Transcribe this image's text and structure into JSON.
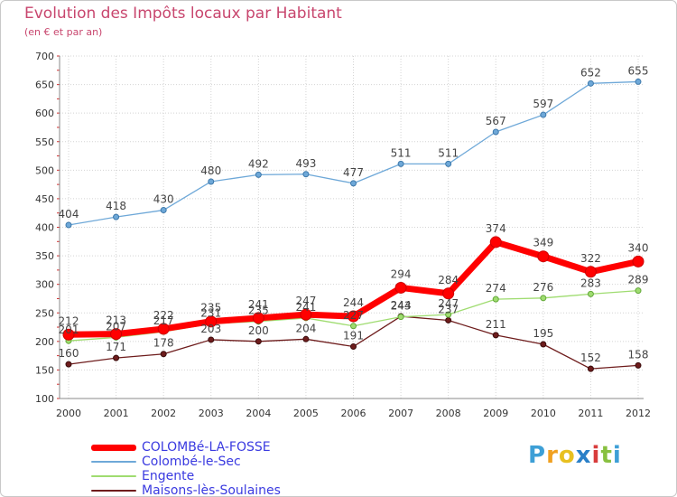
{
  "chart_data": {
    "type": "line",
    "title": "Evolution des Impôts locaux par Habitant",
    "subtitle": "(en € et par an)",
    "xlabel": "",
    "ylabel": "",
    "x": [
      "2000",
      "2001",
      "2002",
      "2003",
      "2004",
      "2005",
      "2006",
      "2007",
      "2008",
      "2009",
      "2010",
      "2011",
      "2012"
    ],
    "ylim": [
      100,
      700
    ],
    "yticks": [
      "100",
      "150",
      "200",
      "250",
      "300",
      "350",
      "400",
      "450",
      "500",
      "550",
      "600",
      "650",
      "700"
    ],
    "grid": true,
    "legend_position": "bottom-left",
    "series": [
      {
        "name": "COLOMBé-LA-FOSSE",
        "color": "#ff0000",
        "values": [
          212,
          213,
          222,
          235,
          241,
          247,
          244,
          294,
          284,
          374,
          349,
          322,
          340
        ],
        "labels": [
          "212",
          "213",
          "222",
          "235",
          "241",
          "247",
          "244",
          "294",
          "284",
          "374",
          "349",
          "322",
          "340"
        ]
      },
      {
        "name": "Colombé-le-Sec",
        "color": "#6ea8d8",
        "values": [
          404,
          418,
          430,
          480,
          492,
          493,
          477,
          511,
          511,
          567,
          597,
          652,
          655
        ],
        "labels": [
          "404",
          "418",
          "430",
          "480",
          "492",
          "493",
          "477",
          "511",
          "511",
          "567",
          "597",
          "652",
          "655"
        ]
      },
      {
        "name": "Engente",
        "color": "#9fdc70",
        "values": [
          201,
          207,
          217,
          231,
          235,
          241,
          227,
          243,
          247,
          274,
          276,
          283,
          289
        ],
        "labels": [
          "201",
          "207",
          "217",
          "231",
          "235",
          "241",
          "227",
          "243",
          "247",
          "274",
          "276",
          "283",
          "289"
        ]
      },
      {
        "name": "Maisons-lès-Soulaines",
        "color": "#6e1c1c",
        "values": [
          160,
          171,
          178,
          203,
          200,
          204,
          191,
          244,
          237,
          211,
          195,
          152,
          158
        ],
        "labels": [
          "160",
          "171",
          "178",
          "203",
          "200",
          "204",
          "191",
          "244",
          "237",
          "211",
          "195",
          "152",
          "158"
        ]
      }
    ]
  },
  "logo": {
    "letters": [
      "P",
      "r",
      "o",
      "x",
      "i",
      "t",
      "i"
    ],
    "colors": [
      "#3d9fd6",
      "#f0a020",
      "#e8c020",
      "#2a80c8",
      "#d83c3c",
      "#88c040",
      "#3d9fd6"
    ]
  }
}
